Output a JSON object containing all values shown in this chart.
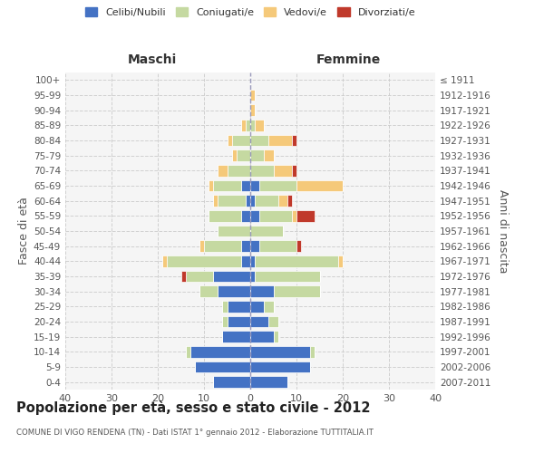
{
  "age_groups": [
    "0-4",
    "5-9",
    "10-14",
    "15-19",
    "20-24",
    "25-29",
    "30-34",
    "35-39",
    "40-44",
    "45-49",
    "50-54",
    "55-59",
    "60-64",
    "65-69",
    "70-74",
    "75-79",
    "80-84",
    "85-89",
    "90-94",
    "95-99",
    "100+"
  ],
  "birth_years": [
    "2007-2011",
    "2002-2006",
    "1997-2001",
    "1992-1996",
    "1987-1991",
    "1982-1986",
    "1977-1981",
    "1972-1976",
    "1967-1971",
    "1962-1966",
    "1957-1961",
    "1952-1956",
    "1947-1951",
    "1942-1946",
    "1937-1941",
    "1932-1936",
    "1927-1931",
    "1922-1926",
    "1917-1921",
    "1912-1916",
    "≤ 1911"
  ],
  "maschi": {
    "celibi": [
      8,
      12,
      13,
      6,
      5,
      5,
      7,
      8,
      2,
      2,
      0,
      2,
      1,
      2,
      0,
      0,
      0,
      0,
      0,
      0,
      0
    ],
    "coniugati": [
      0,
      0,
      1,
      0,
      1,
      1,
      4,
      6,
      16,
      8,
      7,
      7,
      6,
      6,
      5,
      3,
      4,
      1,
      0,
      0,
      0
    ],
    "vedovi": [
      0,
      0,
      0,
      0,
      0,
      0,
      0,
      0,
      1,
      1,
      0,
      0,
      1,
      1,
      2,
      1,
      1,
      1,
      0,
      0,
      0
    ],
    "divorziati": [
      0,
      0,
      0,
      0,
      0,
      0,
      0,
      1,
      0,
      0,
      0,
      0,
      0,
      0,
      0,
      0,
      0,
      0,
      0,
      0,
      0
    ]
  },
  "femmine": {
    "nubili": [
      8,
      13,
      13,
      5,
      4,
      3,
      5,
      1,
      1,
      2,
      0,
      2,
      1,
      2,
      0,
      0,
      0,
      0,
      0,
      0,
      0
    ],
    "coniugate": [
      0,
      0,
      1,
      1,
      2,
      2,
      10,
      14,
      18,
      8,
      7,
      7,
      5,
      8,
      5,
      3,
      4,
      1,
      0,
      0,
      0
    ],
    "vedove": [
      0,
      0,
      0,
      0,
      0,
      0,
      0,
      0,
      1,
      0,
      0,
      1,
      2,
      10,
      4,
      2,
      5,
      2,
      1,
      1,
      0
    ],
    "divorziate": [
      0,
      0,
      0,
      0,
      0,
      0,
      0,
      0,
      0,
      1,
      0,
      4,
      1,
      0,
      1,
      0,
      1,
      0,
      0,
      0,
      0
    ]
  },
  "color_celibe": "#4472c4",
  "color_coniugato": "#c5d9a1",
  "color_vedovo": "#f5c97a",
  "color_divorziato": "#c0392b",
  "title": "Popolazione per età, sesso e stato civile - 2012",
  "subtitle": "COMUNE DI VIGO RENDENA (TN) - Dati ISTAT 1° gennaio 2012 - Elaborazione TUTTITALIA.IT",
  "xlabel_left": "Maschi",
  "xlabel_right": "Femmine",
  "ylabel_left": "Fasce di età",
  "ylabel_right": "Anni di nascita",
  "xlim": 40,
  "legend_labels": [
    "Celibi/Nubili",
    "Coniugati/e",
    "Vedovi/e",
    "Divorziati/e"
  ],
  "bg_color": "#ffffff",
  "grid_color": "#cccccc"
}
